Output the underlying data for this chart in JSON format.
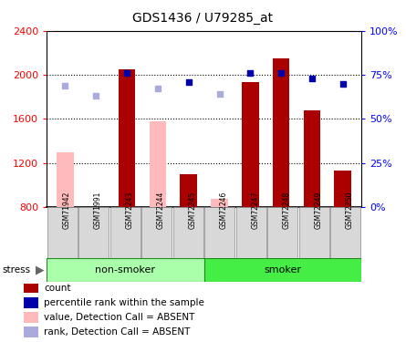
{
  "title": "GDS1436 / U79285_at",
  "samples": [
    "GSM71942",
    "GSM71991",
    "GSM72243",
    "GSM72244",
    "GSM72245",
    "GSM72246",
    "GSM72247",
    "GSM72248",
    "GSM72249",
    "GSM72250"
  ],
  "bar_values": [
    null,
    null,
    2050,
    null,
    1100,
    null,
    1930,
    2150,
    1680,
    1130
  ],
  "bar_absent_values": [
    1300,
    null,
    null,
    1580,
    null,
    870,
    null,
    null,
    null,
    null
  ],
  "rank_present": [
    null,
    null,
    76,
    null,
    71,
    null,
    76,
    76,
    73,
    70
  ],
  "rank_absent": [
    69,
    63,
    null,
    67,
    null,
    64,
    null,
    null,
    null,
    null
  ],
  "ylim_left": [
    800,
    2400
  ],
  "ylim_right": [
    0,
    100
  ],
  "yticks_left": [
    800,
    1200,
    1600,
    2000,
    2400
  ],
  "yticks_right": [
    0,
    25,
    50,
    75,
    100
  ],
  "ytick_labels_right": [
    "0%",
    "25%",
    "50%",
    "75%",
    "100%"
  ],
  "bar_color_present": "#aa0000",
  "bar_color_absent": "#ffbbbb",
  "rank_color_present": "#0000aa",
  "rank_color_absent": "#aaaadd",
  "bar_width": 0.55,
  "nonsmoker_color": "#aaffaa",
  "smoker_color": "#44ee44",
  "group_border_color": "#228822",
  "legend_items": [
    {
      "label": "count",
      "color": "#aa0000"
    },
    {
      "label": "percentile rank within the sample",
      "color": "#0000aa"
    },
    {
      "label": "value, Detection Call = ABSENT",
      "color": "#ffbbbb"
    },
    {
      "label": "rank, Detection Call = ABSENT",
      "color": "#aaaadd"
    }
  ],
  "nonsmoker_samples": [
    0,
    1,
    2,
    3,
    4
  ],
  "smoker_samples": [
    5,
    6,
    7,
    8,
    9
  ]
}
